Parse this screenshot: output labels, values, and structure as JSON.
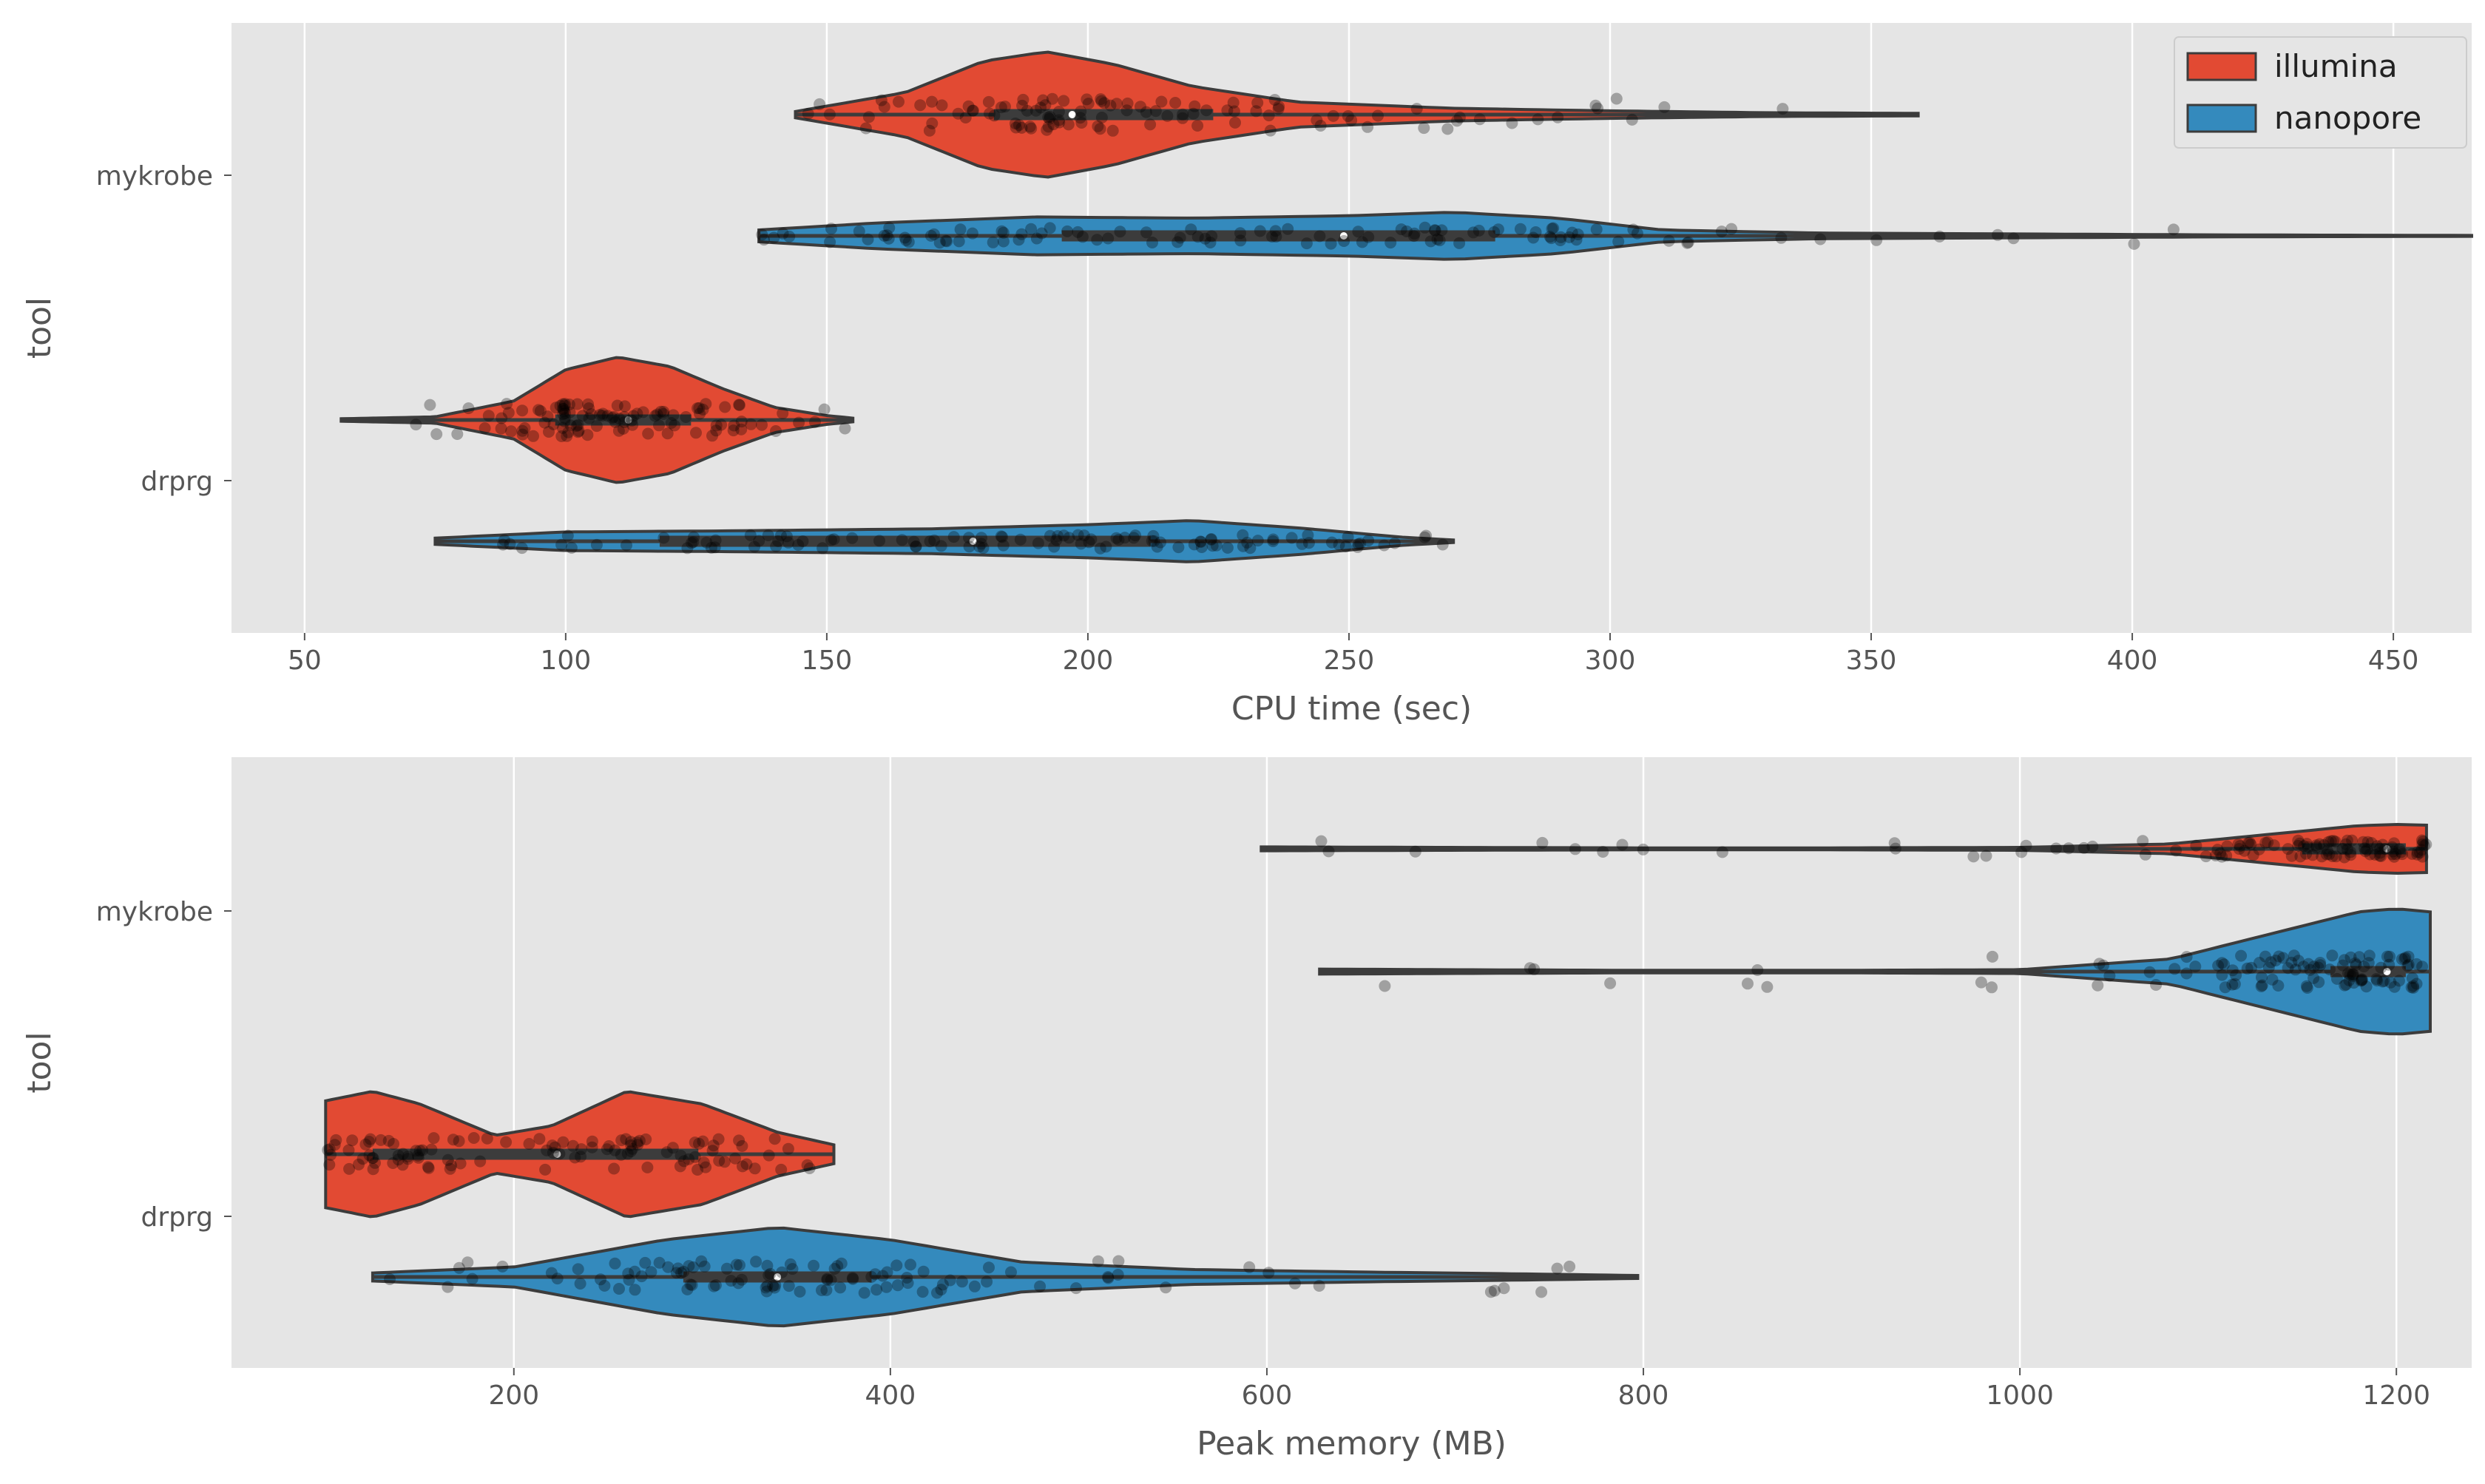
{
  "colors": {
    "panel_bg": "#E5E5E5",
    "grid": "#FFFFFF",
    "illumina": "#E24A33",
    "nanopore": "#348ABD",
    "outline": "#3C3C3C",
    "points": "#000000",
    "text": "#555555"
  },
  "legend": {
    "location": "top-right of upper panel",
    "entries": [
      {
        "label": "illumina",
        "color_key": "illumina"
      },
      {
        "label": "nanopore",
        "color_key": "nanopore"
      }
    ]
  },
  "chart_data": [
    {
      "type": "violin",
      "orientation": "horizontal",
      "xlabel": "CPU time (sec)",
      "ylabel": "tool",
      "xlim": [
        36,
        465
      ],
      "xticks": [
        50,
        100,
        150,
        200,
        250,
        300,
        350,
        400,
        450
      ],
      "categories": [
        "mykrobe",
        "drprg"
      ],
      "grid": true,
      "series": [
        {
          "name": "illumina",
          "groups": [
            {
              "category": "mykrobe",
              "min": 144,
              "q1": 182,
              "median": 197,
              "q3": 224,
              "max": 359,
              "density": [
                [
                  144,
                  0.05
                ],
                [
                  165,
                  0.35
                ],
                [
                  180,
                  0.85
                ],
                [
                  192,
                  1.0
                ],
                [
                  205,
                  0.8
                ],
                [
                  220,
                  0.45
                ],
                [
                  240,
                  0.2
                ],
                [
                  270,
                  0.1
                ],
                [
                  300,
                  0.06
                ],
                [
                  330,
                  0.03
                ],
                [
                  359,
                  0.02
                ]
              ]
            },
            {
              "category": "drprg",
              "min": 57,
              "q1": 98,
              "median": 112,
              "q3": 124,
              "max": 155,
              "density": [
                [
                  57,
                  0.02
                ],
                [
                  75,
                  0.05
                ],
                [
                  90,
                  0.3
                ],
                [
                  100,
                  0.8
                ],
                [
                  110,
                  1.0
                ],
                [
                  120,
                  0.85
                ],
                [
                  130,
                  0.5
                ],
                [
                  140,
                  0.2
                ],
                [
                  150,
                  0.07
                ],
                [
                  155,
                  0.03
                ]
              ]
            }
          ]
        },
        {
          "name": "nanopore",
          "groups": [
            {
              "category": "mykrobe",
              "min": 137,
              "q1": 195,
              "median": 249,
              "q3": 278,
              "max": 465,
              "density": [
                [
                  137,
                  0.25
                ],
                [
                  160,
                  0.55
                ],
                [
                  190,
                  0.8
                ],
                [
                  220,
                  0.75
                ],
                [
                  250,
                  0.85
                ],
                [
                  270,
                  1.0
                ],
                [
                  290,
                  0.75
                ],
                [
                  310,
                  0.25
                ],
                [
                  340,
                  0.12
                ],
                [
                  380,
                  0.08
                ],
                [
                  420,
                  0.04
                ],
                [
                  465,
                  0.02
                ]
              ]
            },
            {
              "category": "drprg",
              "min": 75,
              "q1": 118,
              "median": 178,
              "q3": 212,
              "max": 270,
              "density": [
                [
                  75,
                  0.15
                ],
                [
                  100,
                  0.45
                ],
                [
                  130,
                  0.5
                ],
                [
                  170,
                  0.6
                ],
                [
                  200,
                  0.8
                ],
                [
                  220,
                  1.0
                ],
                [
                  240,
                  0.65
                ],
                [
                  260,
                  0.2
                ],
                [
                  270,
                  0.06
                ]
              ]
            }
          ]
        }
      ]
    },
    {
      "type": "violin",
      "orientation": "horizontal",
      "xlabel": "Peak memory (MB)",
      "ylabel": "tool",
      "xlim": [
        50,
        1240
      ],
      "xticks": [
        200,
        400,
        600,
        800,
        1000,
        1200
      ],
      "categories": [
        "mykrobe",
        "drprg"
      ],
      "grid": true,
      "series": [
        {
          "name": "illumina",
          "groups": [
            {
              "category": "mykrobe",
              "min": 597,
              "q1": 1150,
              "median": 1195,
              "q3": 1205,
              "max": 1216,
              "density": [
                [
                  597,
                  0.08
                ],
                [
                  700,
                  0.06
                ],
                [
                  800,
                  0.04
                ],
                [
                  900,
                  0.04
                ],
                [
                  1000,
                  0.06
                ],
                [
                  1080,
                  0.2
                ],
                [
                  1140,
                  0.65
                ],
                [
                  1180,
                  0.95
                ],
                [
                  1200,
                  1.0
                ],
                [
                  1216,
                  0.97
                ]
              ]
            },
            {
              "category": "drprg",
              "min": 100,
              "q1": 125,
              "median": 223,
              "q3": 298,
              "max": 370,
              "density": [
                [
                  100,
                  0.85
                ],
                [
                  125,
                  1.0
                ],
                [
                  150,
                  0.8
                ],
                [
                  190,
                  0.3
                ],
                [
                  220,
                  0.45
                ],
                [
                  260,
                  1.0
                ],
                [
                  300,
                  0.8
                ],
                [
                  340,
                  0.35
                ],
                [
                  370,
                  0.15
                ]
              ]
            }
          ]
        },
        {
          "name": "nanopore",
          "groups": [
            {
              "category": "mykrobe",
              "min": 628,
              "q1": 1165,
              "median": 1195,
              "q3": 1205,
              "max": 1218,
              "density": [
                [
                  628,
                  0.04
                ],
                [
                  700,
                  0.03
                ],
                [
                  800,
                  0.02
                ],
                [
                  900,
                  0.02
                ],
                [
                  1000,
                  0.03
                ],
                [
                  1080,
                  0.2
                ],
                [
                  1140,
                  0.65
                ],
                [
                  1180,
                  0.95
                ],
                [
                  1200,
                  1.0
                ],
                [
                  1218,
                  0.95
                ]
              ]
            },
            {
              "category": "drprg",
              "min": 125,
              "q1": 290,
              "median": 340,
              "q3": 390,
              "max": 797,
              "density": [
                [
                  125,
                  0.08
                ],
                [
                  200,
                  0.2
                ],
                [
                  280,
                  0.75
                ],
                [
                  340,
                  1.0
                ],
                [
                  400,
                  0.75
                ],
                [
                  470,
                  0.3
                ],
                [
                  560,
                  0.15
                ],
                [
                  650,
                  0.1
                ],
                [
                  720,
                  0.07
                ],
                [
                  797,
                  0.03
                ]
              ]
            }
          ]
        }
      ]
    }
  ]
}
